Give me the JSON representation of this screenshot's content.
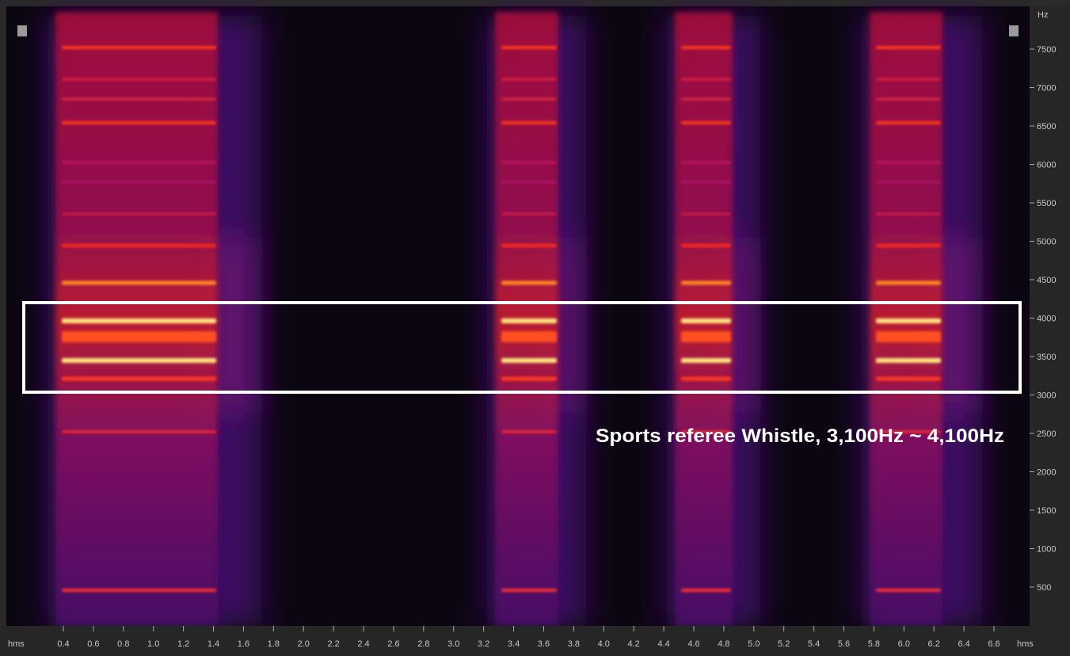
{
  "hz_axis": {
    "unit": "Hz",
    "ticks": [
      "7500",
      "7000",
      "6500",
      "6000",
      "5500",
      "5000",
      "4500",
      "4000",
      "3500",
      "3000",
      "2500",
      "2000",
      "1500",
      "1000",
      "500"
    ]
  },
  "time_axis": {
    "unit": "hms",
    "ticks": [
      "0.4",
      "0.6",
      "0.8",
      "1.0",
      "1.2",
      "1.4",
      "1.6",
      "1.8",
      "2.0",
      "2.2",
      "2.4",
      "2.6",
      "2.8",
      "3.0",
      "3.2",
      "3.4",
      "3.6",
      "3.8",
      "4.0",
      "4.2",
      "4.4",
      "4.6",
      "4.8",
      "5.0",
      "5.2",
      "5.4",
      "5.6",
      "5.8",
      "6.0",
      "6.2",
      "6.4",
      "6.6"
    ]
  },
  "annotation": "Sports referee Whistle, 3,100Hz ~ 4,100Hz"
}
